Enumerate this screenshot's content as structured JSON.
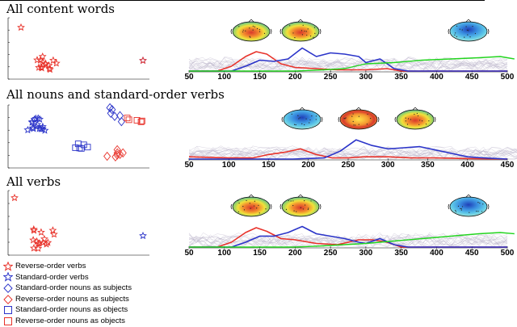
{
  "panels": [
    {
      "title": "All content words",
      "axis_ticks": [
        "50",
        "100",
        "150",
        "200",
        "250",
        "300",
        "350",
        "400",
        "450",
        "500"
      ]
    },
    {
      "title": "All nouns and standard-order verbs",
      "axis_ticks": [
        "50",
        "100",
        "150",
        "200",
        "250",
        "300",
        "350",
        "400",
        "450"
      ]
    },
    {
      "title": "All verbs",
      "axis_ticks": [
        "50",
        "100",
        "150",
        "200",
        "250",
        "300",
        "350",
        "400",
        "450",
        "500"
      ]
    }
  ],
  "legend": [
    {
      "label": "Reverse-order verbs",
      "marker": "star",
      "color": "#e8322a"
    },
    {
      "label": "Standard-order verbs",
      "marker": "star",
      "color": "#2b34c9"
    },
    {
      "label": "Standard-order nouns as subjects",
      "marker": "diamond",
      "color": "#2b34c9"
    },
    {
      "label": "Reverse-order nouns as subjects",
      "marker": "diamond",
      "color": "#e8322a"
    },
    {
      "label": "Standard-order nouns as objects",
      "marker": "square",
      "color": "#2b34c9"
    },
    {
      "label": "Reverse-order nouns as objects",
      "marker": "square",
      "color": "#e8322a"
    }
  ],
  "colors": {
    "red": "#e8322a",
    "blue": "#2b34c9",
    "green": "#22d41e",
    "gray": "#b8b0c8"
  }
}
